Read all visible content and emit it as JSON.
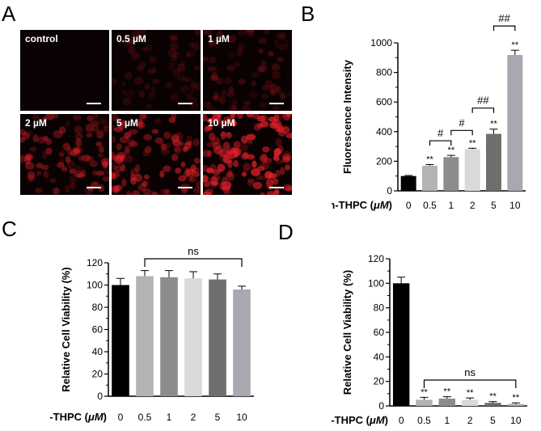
{
  "panels": {
    "A": {
      "letter": "A"
    },
    "B": {
      "letter": "B"
    },
    "C": {
      "letter": "C"
    },
    "D": {
      "letter": "D"
    }
  },
  "micrographs": {
    "tiles": [
      {
        "label": "control",
        "intensity": 0.0
      },
      {
        "label": "0.5 µM",
        "intensity": 0.18
      },
      {
        "label": "1 µM",
        "intensity": 0.25
      },
      {
        "label": "2 µM",
        "intensity": 0.55
      },
      {
        "label": "5 µM",
        "intensity": 0.7
      },
      {
        "label": "10 µM",
        "intensity": 1.0
      }
    ],
    "colors": {
      "background": "#0a0202",
      "signal": "#e0202a"
    }
  },
  "chart_data": [
    {
      "panel": "B",
      "type": "bar",
      "categories": [
        "0",
        "0.5",
        "1",
        "2",
        "5",
        "10"
      ],
      "values": [
        100,
        170,
        228,
        282,
        385,
        918
      ],
      "errors": [
        4,
        8,
        12,
        6,
        32,
        32
      ],
      "significance": [
        "",
        "**",
        "**",
        "**",
        "**",
        "**"
      ],
      "bar_colors": [
        "#000000",
        "#b3b3b3",
        "#8c8c8c",
        "#d9d9d9",
        "#6e6e6e",
        "#a8a8b0"
      ],
      "ylabel": "Fluorescence Intensity",
      "xlabel_prefix": "m-THPC (",
      "xlabel_unit": "μM",
      "xlabel_suffix": ")",
      "ylim": [
        0,
        1000
      ],
      "yticks": [
        0,
        200,
        400,
        600,
        800,
        1000
      ],
      "brackets": [
        {
          "from": 1,
          "to": 2,
          "label": "#"
        },
        {
          "from": 2,
          "to": 3,
          "label": "#"
        },
        {
          "from": 3,
          "to": 4,
          "label": "##"
        },
        {
          "from": 4,
          "to": 5,
          "label": "##"
        }
      ]
    },
    {
      "panel": "C",
      "type": "bar",
      "categories": [
        "0",
        "0.5",
        "1",
        "2",
        "5",
        "10"
      ],
      "values": [
        100,
        108,
        107,
        106,
        105,
        96
      ],
      "errors": [
        6,
        5,
        6,
        6,
        5,
        3
      ],
      "significance": [
        "",
        "",
        "",
        "",
        "",
        ""
      ],
      "bar_colors": [
        "#000000",
        "#b3b3b3",
        "#8c8c8c",
        "#d9d9d9",
        "#6e6e6e",
        "#a8a8b0"
      ],
      "ylabel": "Relative Cell Viability (%)",
      "xlabel_prefix": "m-THPC (",
      "xlabel_unit": "μM",
      "xlabel_suffix": ")",
      "ylim": [
        0,
        120
      ],
      "yticks": [
        0,
        20,
        40,
        60,
        80,
        100,
        120
      ],
      "brackets": [
        {
          "from": 1,
          "to": 5,
          "label": "ns"
        }
      ]
    },
    {
      "panel": "D",
      "type": "bar",
      "categories": [
        "0",
        "0.5",
        "1",
        "2",
        "5",
        "10"
      ],
      "values": [
        100,
        5,
        6,
        5,
        2.5,
        1.5
      ],
      "errors": [
        5,
        2,
        1.5,
        1.5,
        1,
        1
      ],
      "significance": [
        "",
        "**",
        "**",
        "**",
        "**",
        "**"
      ],
      "bar_colors": [
        "#000000",
        "#b3b3b3",
        "#8c8c8c",
        "#d9d9d9",
        "#6e6e6e",
        "#a8a8b0"
      ],
      "ylabel": "Relative Cell Viability (%)",
      "xlabel_prefix": "m-THPC (",
      "xlabel_unit": "μM",
      "xlabel_suffix": ")",
      "ylim": [
        0,
        120
      ],
      "yticks": [
        0,
        20,
        40,
        60,
        80,
        100,
        120
      ],
      "brackets": [
        {
          "from": 1,
          "to": 5,
          "label": "ns"
        }
      ]
    }
  ]
}
